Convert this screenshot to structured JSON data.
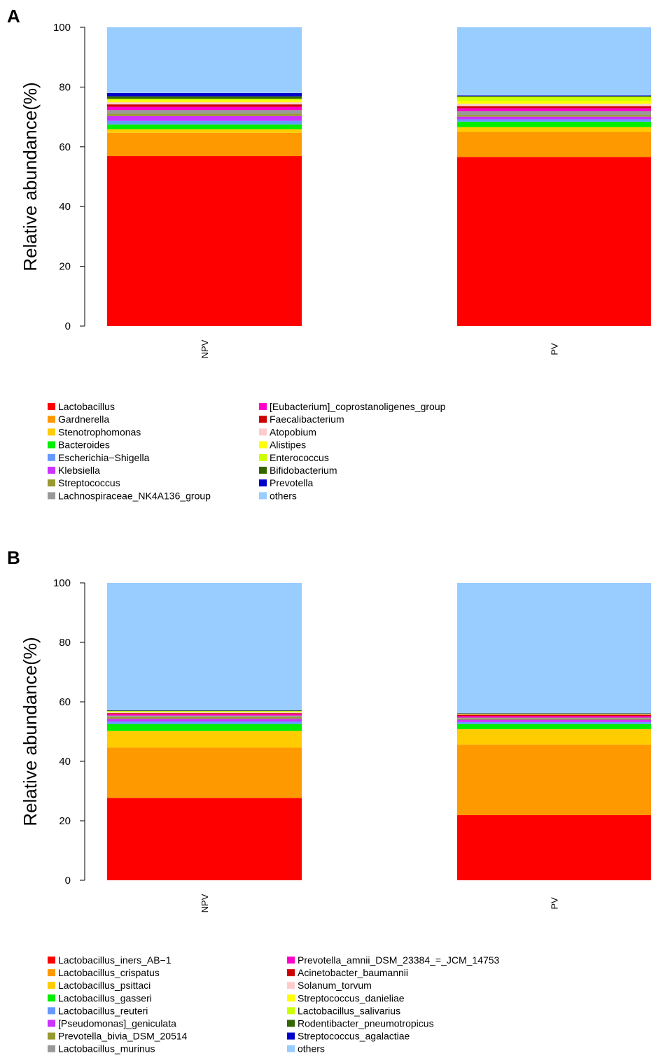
{
  "chart_data": [
    {
      "panel_label": "A",
      "type": "stacked-bar",
      "ylabel": "Relative abundance(%)",
      "ylim": [
        0,
        100
      ],
      "yticks": [
        0,
        20,
        40,
        60,
        80,
        100
      ],
      "categories": [
        "NPV",
        "PV"
      ],
      "series": [
        {
          "name": "Lactobacillus",
          "color": "#FF0000",
          "values": [
            56.9,
            56.6
          ]
        },
        {
          "name": "Gardnerella",
          "color": "#FF9900",
          "values": [
            7.8,
            8.4
          ]
        },
        {
          "name": "Stenotrophomonas",
          "color": "#FFCC00",
          "values": [
            1.2,
            1.6
          ]
        },
        {
          "name": "Bacteroides",
          "color": "#00EE00",
          "values": [
            1.6,
            1.8
          ]
        },
        {
          "name": "Escherichia−Shigella",
          "color": "#6699FF",
          "values": [
            1.2,
            0.8
          ]
        },
        {
          "name": "Klebsiella",
          "color": "#CC33FF",
          "values": [
            1.6,
            0.9
          ]
        },
        {
          "name": "Streptococcus",
          "color": "#999933",
          "values": [
            0.8,
            0.6
          ]
        },
        {
          "name": "Lachnospiraceae_NK4A136_group",
          "color": "#999999",
          "values": [
            1.2,
            1.2
          ]
        },
        {
          "name": "[Eubacterium]_coprostanoligenes_group",
          "color": "#FF00CC",
          "values": [
            1.1,
            1.0
          ]
        },
        {
          "name": "Faecalibacterium",
          "color": "#CC0000",
          "values": [
            0.8,
            0.7
          ]
        },
        {
          "name": "Atopobium",
          "color": "#FFCCCC",
          "values": [
            0.7,
            0.8
          ]
        },
        {
          "name": "Alistipes",
          "color": "#FFFF00",
          "values": [
            0.7,
            1.0
          ]
        },
        {
          "name": "Enterococcus",
          "color": "#CCFF00",
          "values": [
            0.5,
            1.3
          ]
        },
        {
          "name": "Bifidobacterium",
          "color": "#336600",
          "values": [
            0.8,
            0.3
          ]
        },
        {
          "name": "Prevotella",
          "color": "#0000CC",
          "values": [
            1.1,
            0.2
          ]
        },
        {
          "name": "others",
          "color": "#99CCFF",
          "values": [
            22.0,
            22.8
          ]
        }
      ]
    },
    {
      "panel_label": "B",
      "type": "stacked-bar",
      "ylabel": "Relative abundance(%)",
      "ylim": [
        0,
        100
      ],
      "yticks": [
        0,
        20,
        40,
        60,
        80,
        100
      ],
      "categories": [
        "NPV",
        "PV"
      ],
      "series": [
        {
          "name": "Lactobacillus_iners_AB−1",
          "color": "#FF0000",
          "values": [
            27.7,
            21.9
          ]
        },
        {
          "name": "Lactobacillus_crispatus",
          "color": "#FF9900",
          "values": [
            16.9,
            23.7
          ]
        },
        {
          "name": "Lactobacillus_psittaci",
          "color": "#FFCC00",
          "values": [
            5.6,
            5.2
          ]
        },
        {
          "name": "Lactobacillus_gasseri",
          "color": "#00EE00",
          "values": [
            2.3,
            1.7
          ]
        },
        {
          "name": "Lactobacillus_reuteri",
          "color": "#6699FF",
          "values": [
            0.9,
            0.7
          ]
        },
        {
          "name": "[Pseudomonas]_geniculata",
          "color": "#CC33FF",
          "values": [
            0.9,
            0.8
          ]
        },
        {
          "name": "Prevotella_bivia_DSM_20514",
          "color": "#999933",
          "values": [
            0.6,
            0.4
          ]
        },
        {
          "name": "Lactobacillus_murinus",
          "color": "#999999",
          "values": [
            0.5,
            0.3
          ]
        },
        {
          "name": "Prevotella_amnii_DSM_23384_=_JCM_14753",
          "color": "#FF00CC",
          "values": [
            0.5,
            0.5
          ]
        },
        {
          "name": "Acinetobacter_baumannii",
          "color": "#CC0000",
          "values": [
            0.3,
            0.5
          ]
        },
        {
          "name": "Solanum_torvum",
          "color": "#FFCCCC",
          "values": [
            0.3,
            0.1
          ]
        },
        {
          "name": "Streptococcus_danieliae",
          "color": "#FFFF00",
          "values": [
            0.2,
            0.1
          ]
        },
        {
          "name": "Lactobacillus_salivarius",
          "color": "#CCFF00",
          "values": [
            0.2,
            0.1
          ]
        },
        {
          "name": "Rodentibacter_pneumotropicus",
          "color": "#336600",
          "values": [
            0.2,
            0.1
          ]
        },
        {
          "name": "Streptococcus_agalactiae",
          "color": "#0000CC",
          "values": [
            0.1,
            0.1
          ]
        },
        {
          "name": "others",
          "color": "#99CCFF",
          "values": [
            42.8,
            43.8
          ]
        }
      ]
    }
  ]
}
